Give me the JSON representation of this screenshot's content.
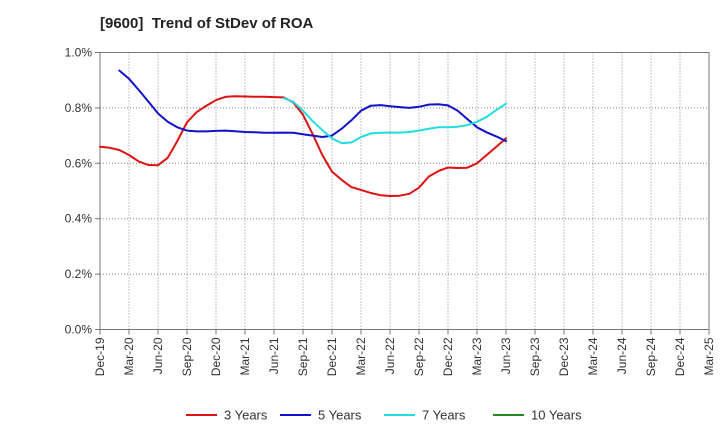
{
  "chart_data": {
    "type": "line",
    "title": "[9600]  Trend of StDev of ROA",
    "xlabel": "",
    "ylabel": "",
    "ylim": [
      0,
      1.0
    ],
    "y_ticks": [
      0,
      0.2,
      0.4,
      0.6,
      0.8,
      1.0
    ],
    "y_tick_labels": [
      "0.0%",
      "0.2%",
      "0.4%",
      "0.6%",
      "0.8%",
      "1.0%"
    ],
    "x_tick_labels": [
      "Dec-19",
      "Mar-20",
      "Jun-20",
      "Sep-20",
      "Dec-20",
      "Mar-21",
      "Jun-21",
      "Sep-21",
      "Dec-21",
      "Mar-22",
      "Jun-22",
      "Sep-22",
      "Dec-22",
      "Mar-23",
      "Jun-23",
      "Sep-23",
      "Dec-23",
      "Mar-24",
      "Jun-24",
      "Sep-24",
      "Dec-24",
      "Mar-25"
    ],
    "grid": true,
    "legend_position": "bottom",
    "series": [
      {
        "name": "3 Years",
        "color": "#dd1111",
        "points": [
          [
            0,
            0.66
          ],
          [
            1,
            0.656
          ],
          [
            2,
            0.648
          ],
          [
            3,
            0.63
          ],
          [
            4,
            0.607
          ],
          [
            5,
            0.594
          ],
          [
            6,
            0.593
          ],
          [
            7,
            0.62
          ],
          [
            8,
            0.68
          ],
          [
            9,
            0.748
          ],
          [
            10,
            0.785
          ],
          [
            11,
            0.808
          ],
          [
            12,
            0.828
          ],
          [
            13,
            0.84
          ],
          [
            14,
            0.842
          ],
          [
            15,
            0.841
          ],
          [
            16,
            0.84
          ],
          [
            17,
            0.84
          ],
          [
            18,
            0.839
          ],
          [
            19,
            0.838
          ],
          [
            20,
            0.82
          ],
          [
            21,
            0.775
          ],
          [
            22,
            0.705
          ],
          [
            23,
            0.63
          ],
          [
            24,
            0.57
          ],
          [
            25,
            0.54
          ],
          [
            26,
            0.514
          ],
          [
            27,
            0.504
          ],
          [
            28,
            0.493
          ],
          [
            29,
            0.485
          ],
          [
            30,
            0.482
          ],
          [
            31,
            0.483
          ],
          [
            32,
            0.49
          ],
          [
            33,
            0.512
          ],
          [
            34,
            0.552
          ],
          [
            35,
            0.572
          ],
          [
            36,
            0.585
          ],
          [
            37,
            0.583
          ],
          [
            38,
            0.584
          ],
          [
            39,
            0.6
          ],
          [
            40,
            0.63
          ],
          [
            41,
            0.66
          ],
          [
            42,
            0.69
          ]
        ]
      },
      {
        "name": "5 Years",
        "color": "#1111cc",
        "points": [
          [
            2,
            0.935
          ],
          [
            3,
            0.905
          ],
          [
            4,
            0.865
          ],
          [
            5,
            0.823
          ],
          [
            6,
            0.78
          ],
          [
            7,
            0.75
          ],
          [
            8,
            0.73
          ],
          [
            9,
            0.718
          ],
          [
            10,
            0.715
          ],
          [
            11,
            0.715
          ],
          [
            12,
            0.717
          ],
          [
            13,
            0.718
          ],
          [
            14,
            0.716
          ],
          [
            15,
            0.713
          ],
          [
            16,
            0.712
          ],
          [
            17,
            0.71
          ],
          [
            18,
            0.71
          ],
          [
            19,
            0.711
          ],
          [
            20,
            0.71
          ],
          [
            21,
            0.705
          ],
          [
            22,
            0.7
          ],
          [
            23,
            0.695
          ],
          [
            24,
            0.7
          ],
          [
            25,
            0.725
          ],
          [
            26,
            0.755
          ],
          [
            27,
            0.79
          ],
          [
            28,
            0.808
          ],
          [
            29,
            0.81
          ],
          [
            30,
            0.806
          ],
          [
            31,
            0.803
          ],
          [
            32,
            0.8
          ],
          [
            33,
            0.804
          ],
          [
            34,
            0.812
          ],
          [
            35,
            0.813
          ],
          [
            36,
            0.809
          ],
          [
            37,
            0.79
          ],
          [
            38,
            0.76
          ],
          [
            39,
            0.73
          ],
          [
            40,
            0.712
          ],
          [
            41,
            0.697
          ],
          [
            42,
            0.68
          ]
        ]
      },
      {
        "name": "7 Years",
        "color": "#22dddd",
        "points": [
          [
            19,
            0.835
          ],
          [
            20,
            0.822
          ],
          [
            21,
            0.79
          ],
          [
            22,
            0.752
          ],
          [
            23,
            0.72
          ],
          [
            24,
            0.69
          ],
          [
            25,
            0.673
          ],
          [
            26,
            0.675
          ],
          [
            27,
            0.695
          ],
          [
            28,
            0.708
          ],
          [
            29,
            0.71
          ],
          [
            30,
            0.711
          ],
          [
            31,
            0.711
          ],
          [
            32,
            0.713
          ],
          [
            33,
            0.718
          ],
          [
            34,
            0.725
          ],
          [
            35,
            0.73
          ],
          [
            36,
            0.73
          ],
          [
            37,
            0.732
          ],
          [
            38,
            0.738
          ],
          [
            39,
            0.75
          ],
          [
            40,
            0.768
          ],
          [
            41,
            0.792
          ],
          [
            42,
            0.815
          ]
        ]
      },
      {
        "name": "10 Years",
        "color": "#228822",
        "points": []
      }
    ]
  }
}
